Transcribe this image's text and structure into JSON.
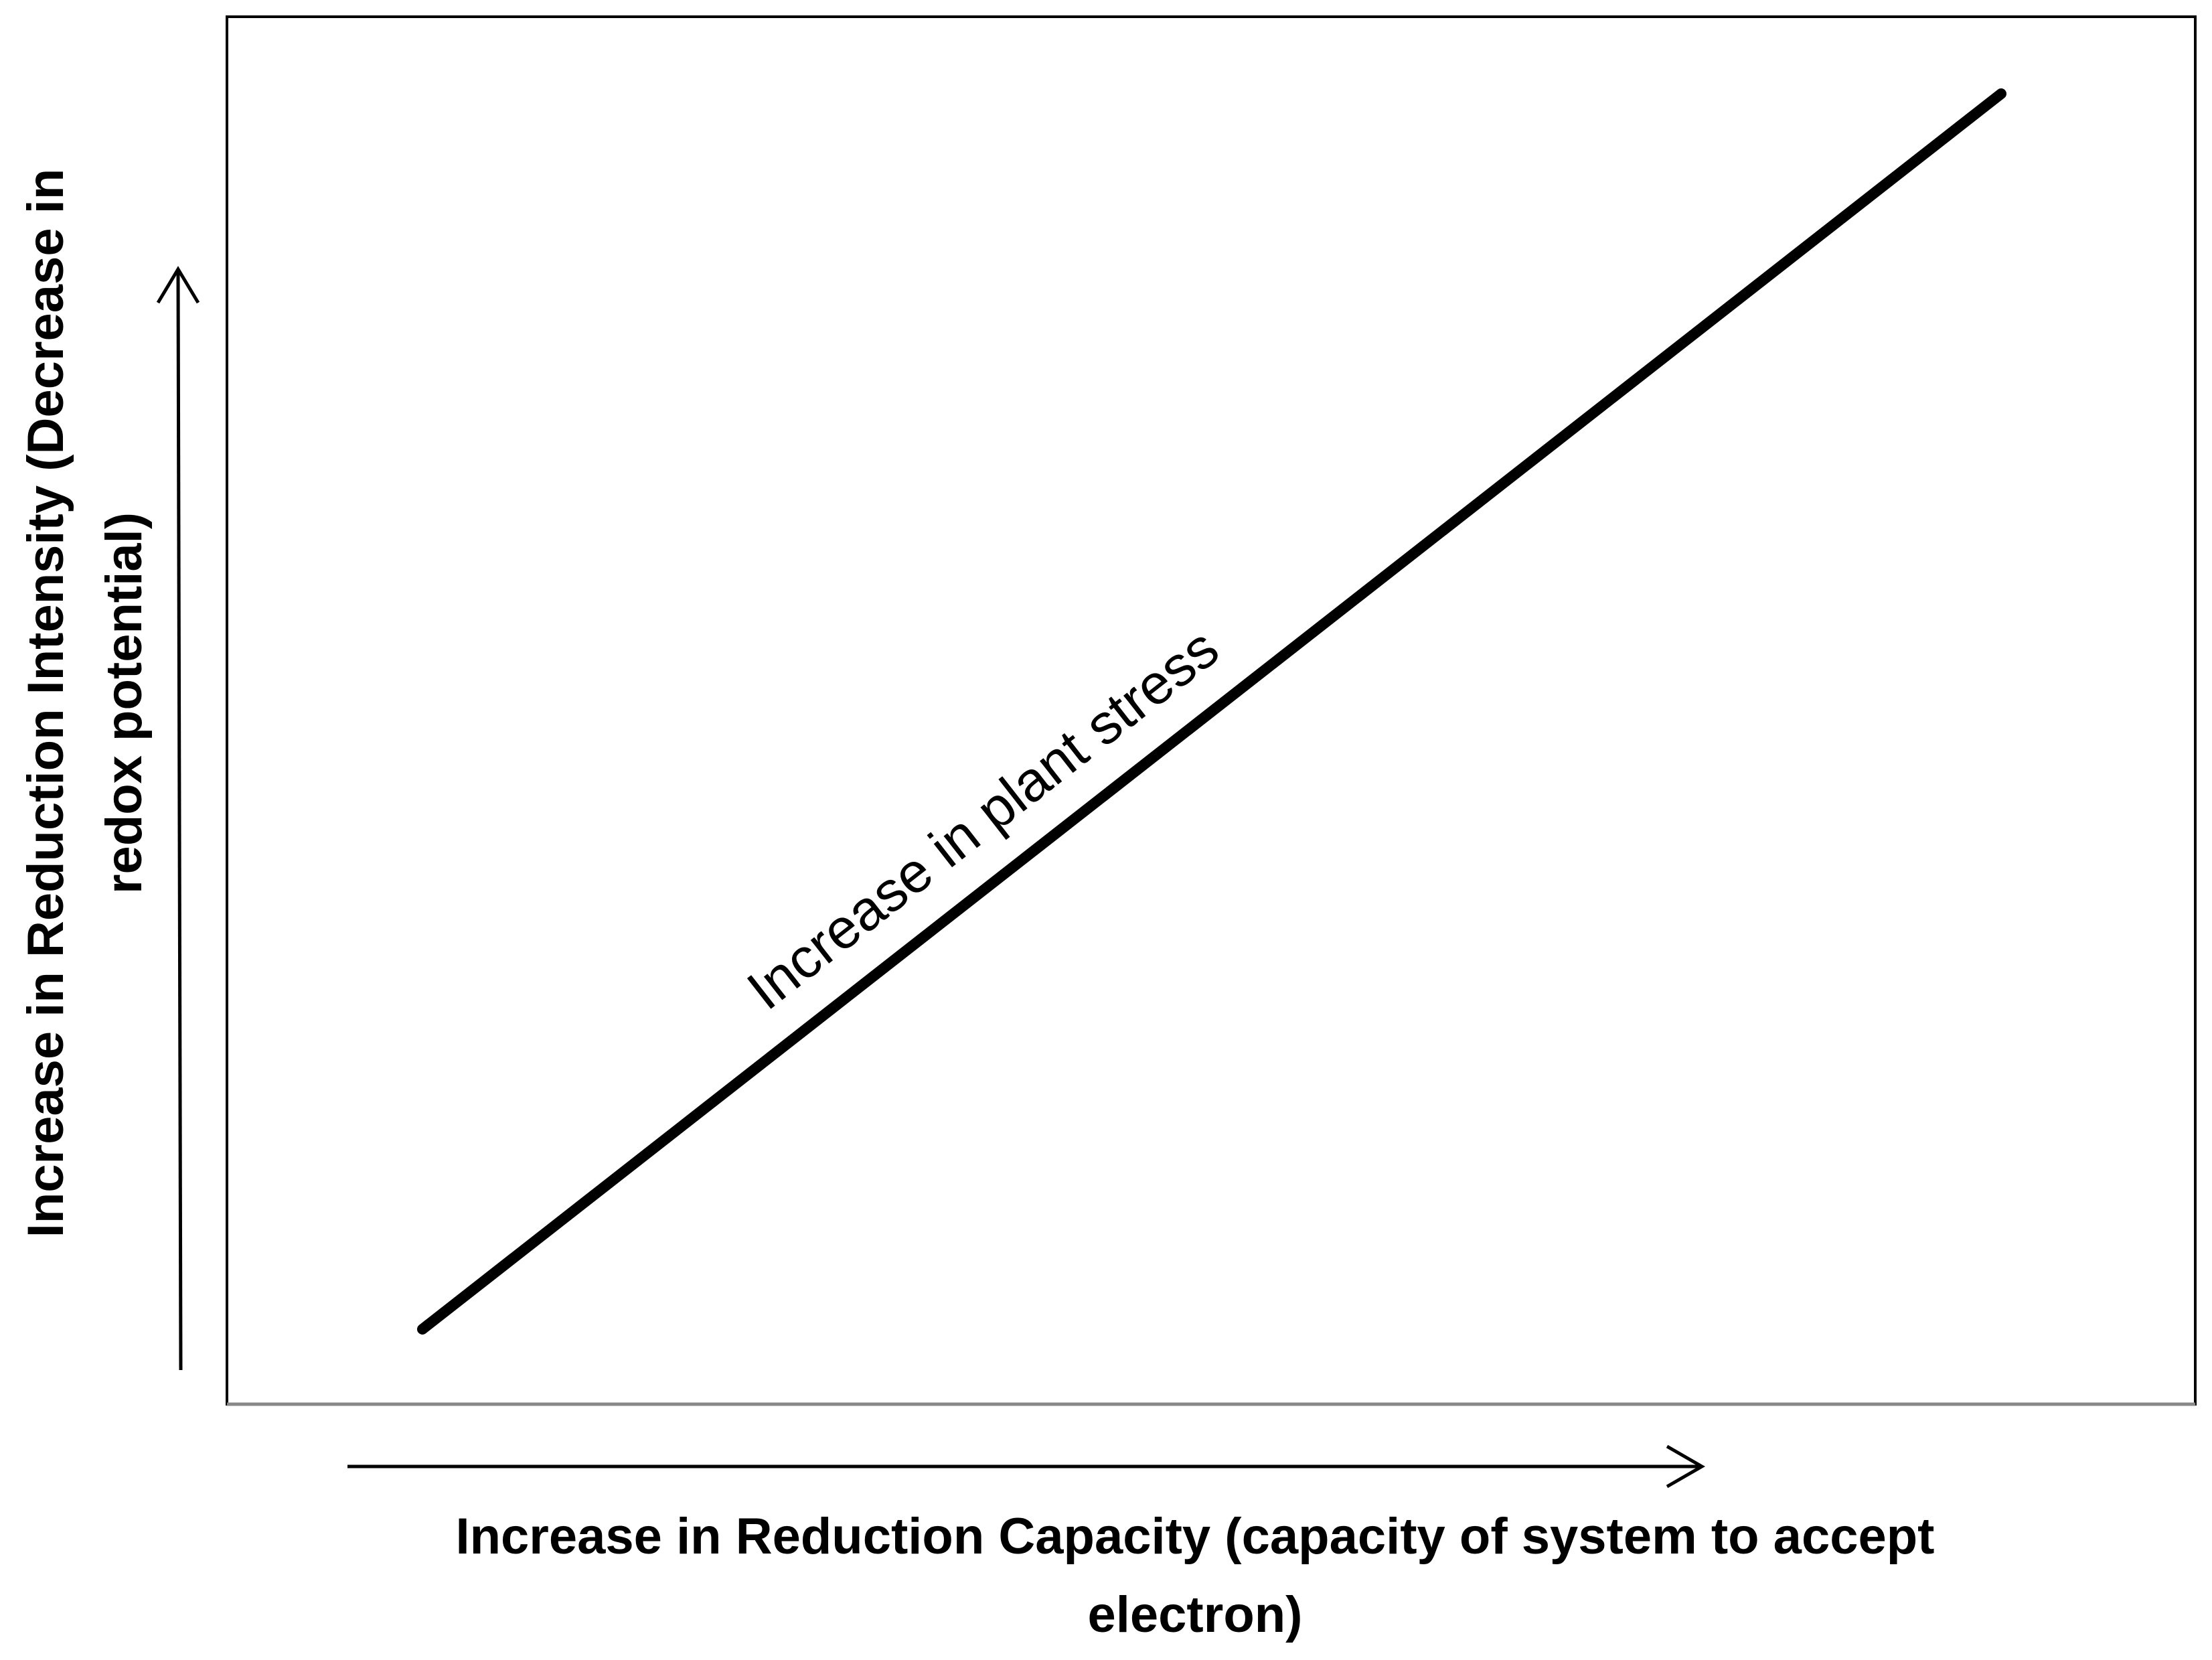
{
  "diagram": {
    "y_axis_label": [
      "Increase in Reduction Intensity (Decrease in",
      "redox potential)"
    ],
    "x_axis_label": [
      "Increase in Reduction Capacity (capacity of system to accept",
      "electron)"
    ],
    "annotation": "Increase in plant stress"
  }
}
